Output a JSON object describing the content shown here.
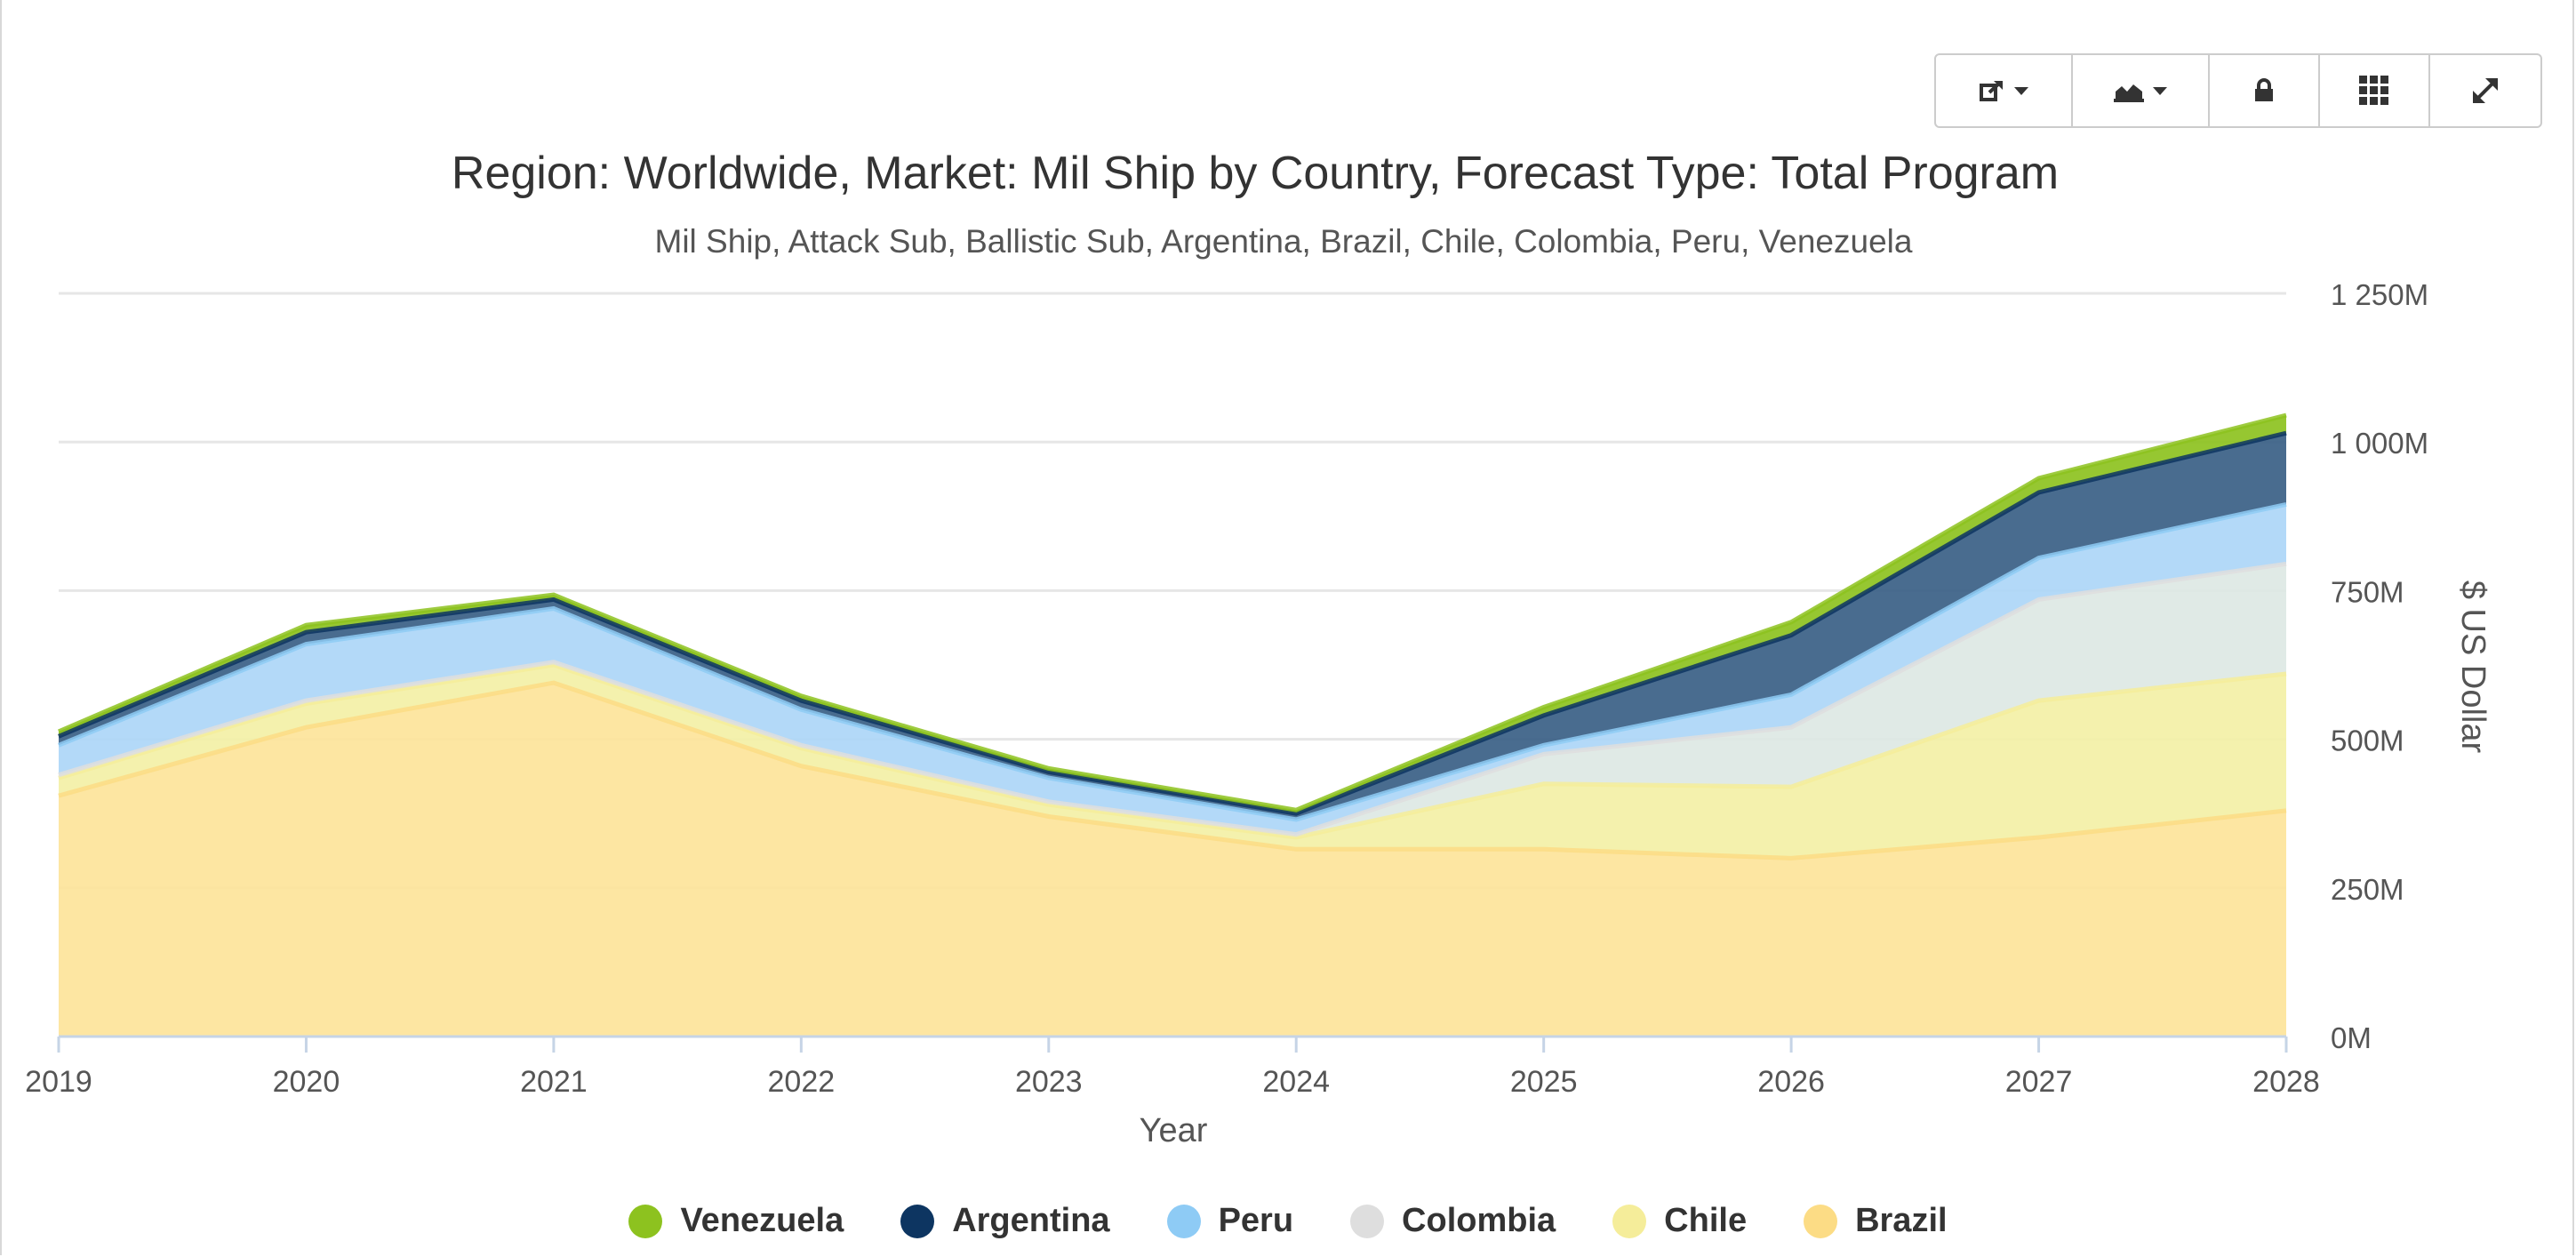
{
  "toolbar": {
    "buttons": [
      {
        "name": "export-button",
        "icon": "export-icon",
        "dropdown": true
      },
      {
        "name": "chart-type-button",
        "icon": "area-chart-icon",
        "dropdown": true
      },
      {
        "name": "lock-button",
        "icon": "lock-icon",
        "dropdown": false
      },
      {
        "name": "grid-button",
        "icon": "grid-icon",
        "dropdown": false
      },
      {
        "name": "expand-button",
        "icon": "expand-icon",
        "dropdown": false
      }
    ]
  },
  "chart_data": {
    "type": "area",
    "stacked": true,
    "title": "Region: Worldwide, Market: Mil Ship by Country, Forecast Type: Total Program",
    "subtitle": "Mil Ship, Attack Sub, Ballistic Sub, Argentina, Brazil, Chile, Colombia, Peru, Venezuela",
    "xlabel": "Year",
    "ylabel": "$ US Dollar",
    "y_axis_position": "right",
    "ylim": [
      0,
      1250
    ],
    "yticks": [
      0,
      250,
      500,
      750,
      1000,
      1250
    ],
    "ytick_labels": [
      "0M",
      "250M",
      "500M",
      "750M",
      "1 000M",
      "1 250M"
    ],
    "x": [
      "2019",
      "2020",
      "2021",
      "2022",
      "2023",
      "2024",
      "2025",
      "2026",
      "2027",
      "2028"
    ],
    "grid": true,
    "legend_position": "bottom",
    "series": [
      {
        "name": "Brazil",
        "color": "#fde49a",
        "values": [
          405,
          520,
          595,
          455,
          370,
          315,
          315,
          300,
          335,
          380
        ]
      },
      {
        "name": "Chile",
        "color": "#f3f0a6",
        "values": [
          30,
          40,
          30,
          30,
          20,
          20,
          110,
          120,
          230,
          230
        ]
      },
      {
        "name": "Colombia",
        "color": "#dde8e4",
        "values": [
          5,
          5,
          5,
          5,
          5,
          5,
          50,
          100,
          170,
          185
        ]
      },
      {
        "name": "Peru",
        "color": "#acd6f7",
        "values": [
          50,
          95,
          90,
          60,
          40,
          25,
          15,
          55,
          70,
          100
        ]
      },
      {
        "name": "Argentina",
        "color": "#3a5f86",
        "values": [
          15,
          20,
          15,
          15,
          10,
          10,
          50,
          100,
          110,
          120
        ]
      },
      {
        "name": "Venezuela",
        "color": "#8dc21f",
        "values": [
          8,
          12,
          8,
          8,
          6,
          6,
          14,
          22,
          24,
          30
        ]
      }
    ],
    "legend": [
      {
        "name": "Venezuela",
        "color": "#8dc21f"
      },
      {
        "name": "Argentina",
        "color": "#0d3561"
      },
      {
        "name": "Peru",
        "color": "#8ecbf5"
      },
      {
        "name": "Colombia",
        "color": "#dedede"
      },
      {
        "name": "Chile",
        "color": "#f5ed9a"
      },
      {
        "name": "Brazil",
        "color": "#fcdc85"
      }
    ]
  }
}
